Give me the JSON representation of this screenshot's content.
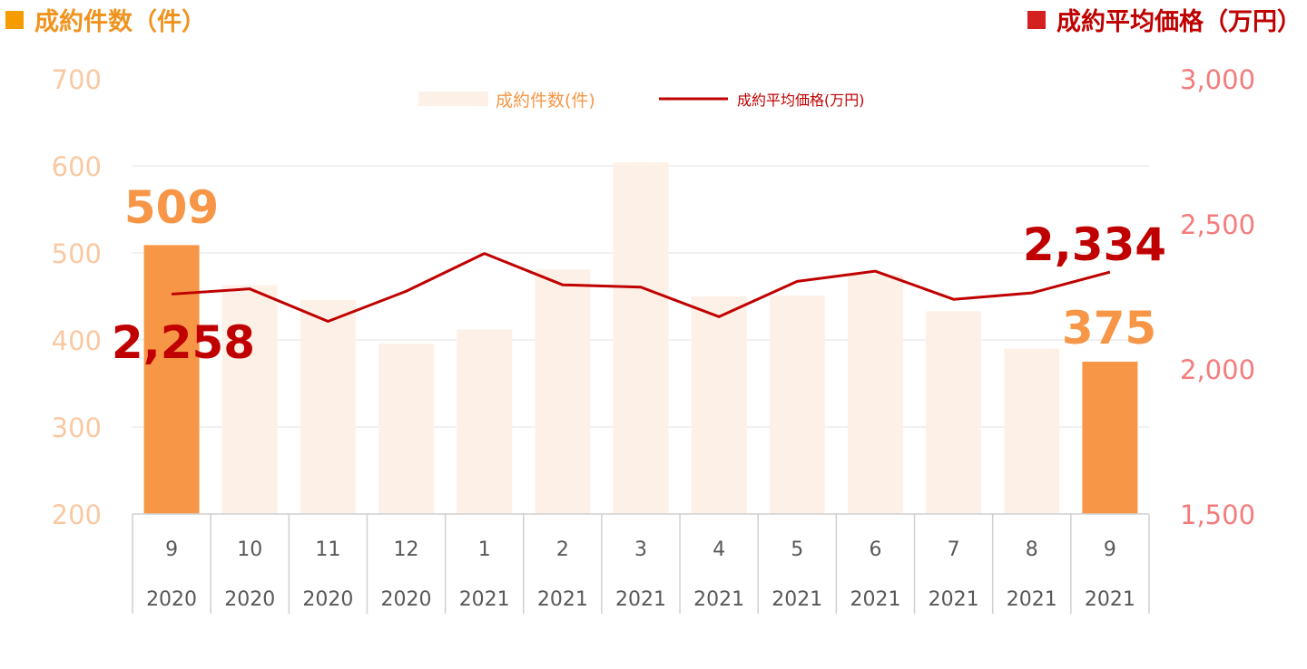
{
  "header": {
    "left_title": "成約件数（件）",
    "right_title": "成約平均価格（万円）"
  },
  "colors": {
    "bar_highlight": "#F79646",
    "bar_faded": "#FDF1E7",
    "line": "#C00000",
    "left_axis": "#F9C9A3",
    "right_axis": "#F47C7C",
    "callout_count": "#F79646",
    "callout_price": "#C00000"
  },
  "chart_data": {
    "type": "bar+line",
    "categories": [
      {
        "month": "9",
        "year": "2020"
      },
      {
        "month": "10",
        "year": "2020"
      },
      {
        "month": "11",
        "year": "2020"
      },
      {
        "month": "12",
        "year": "2020"
      },
      {
        "month": "1",
        "year": "2021"
      },
      {
        "month": "2",
        "year": "2021"
      },
      {
        "month": "3",
        "year": "2021"
      },
      {
        "month": "4",
        "year": "2021"
      },
      {
        "month": "5",
        "year": "2021"
      },
      {
        "month": "6",
        "year": "2021"
      },
      {
        "month": "7",
        "year": "2021"
      },
      {
        "month": "8",
        "year": "2021"
      },
      {
        "month": "9",
        "year": "2021"
      }
    ],
    "series": [
      {
        "name": "成約件数(件)",
        "kind": "bar",
        "axis": "left",
        "values": [
          509,
          463,
          446,
          396,
          412,
          481,
          604,
          450,
          451,
          475,
          433,
          390,
          375
        ],
        "highlight": [
          true,
          false,
          false,
          false,
          false,
          false,
          false,
          false,
          false,
          false,
          false,
          false,
          true
        ]
      },
      {
        "name": "成約平均価格(万円)",
        "kind": "line",
        "axis": "right",
        "values": [
          2258,
          2276,
          2164,
          2268,
          2398,
          2290,
          2282,
          2180,
          2302,
          2337,
          2240,
          2262,
          2334
        ]
      }
    ],
    "y_left": {
      "min": 200,
      "max": 700,
      "ticks": [
        "200",
        "300",
        "400",
        "500",
        "600",
        "700"
      ]
    },
    "y_right": {
      "min": 1500,
      "max": 3000,
      "ticks": [
        "1,500",
        "2,000",
        "2,500",
        "3,000"
      ]
    },
    "callouts": {
      "count_first": "509",
      "count_last": "375",
      "price_first": "2,258",
      "price_last": "2,334"
    },
    "legend_placement": "top-center",
    "grid": true
  }
}
